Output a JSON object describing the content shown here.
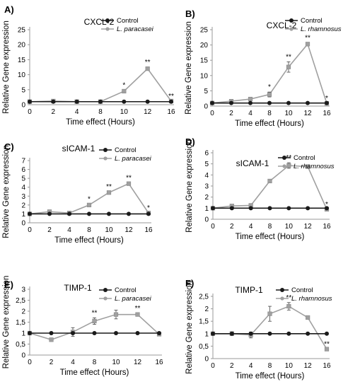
{
  "figure": {
    "width": 509,
    "height": 550
  },
  "chart_data": [
    {
      "panel": "A)",
      "type": "line",
      "title": "CXCL-2",
      "xlabel": "Time effect (Hours)",
      "ylabel": "Relative Gene expression",
      "x": [
        0,
        2,
        4,
        8,
        10,
        12,
        16
      ],
      "ylim": [
        0,
        25
      ],
      "yticks": [
        "0",
        "5",
        "10",
        "15",
        "20",
        "25"
      ],
      "series": [
        {
          "name": "Control",
          "italic": false,
          "values": [
            1,
            1,
            1,
            1,
            1,
            1,
            1
          ],
          "color": "#1a1a1a"
        },
        {
          "name": "L. paracasei",
          "italic": true,
          "values": [
            1,
            1.2,
            1,
            1,
            4.5,
            12,
            1.2
          ],
          "err": [
            0,
            0,
            0,
            0,
            0.3,
            0.5,
            0
          ],
          "sig": [
            "",
            "",
            "",
            "",
            "*",
            "**",
            "**"
          ],
          "color": "#a0a0a0"
        }
      ]
    },
    {
      "panel": "B)",
      "type": "line",
      "title": "CXCL-2",
      "xlabel": "Time effect (Hours)",
      "ylabel": "Relative Gene expression",
      "x": [
        0,
        2,
        4,
        8,
        10,
        12,
        16
      ],
      "ylim": [
        0,
        25
      ],
      "yticks": [
        "0",
        "5",
        "10",
        "15",
        "20",
        "25"
      ],
      "series": [
        {
          "name": "Control",
          "italic": false,
          "values": [
            1,
            1,
            1,
            1,
            1,
            1,
            1
          ],
          "color": "#1a1a1a"
        },
        {
          "name": "L. rhamnosus",
          "italic": true,
          "values": [
            1,
            1.6,
            2.3,
            3.8,
            12.8,
            20.3,
            0.9
          ],
          "err": [
            0,
            0,
            0,
            0.8,
            1.7,
            0.4,
            0
          ],
          "sig": [
            "",
            "",
            "",
            "*",
            "**",
            "**",
            "*"
          ],
          "color": "#a0a0a0"
        }
      ]
    },
    {
      "panel": "C)",
      "type": "line",
      "title": "sICAM-1",
      "xlabel": "Time effect (Hours)",
      "ylabel": "Relative Gene expression",
      "x": [
        0,
        2,
        4,
        8,
        10,
        12,
        16
      ],
      "ylim": [
        0,
        7
      ],
      "yticks": [
        "0",
        "1",
        "2",
        "3",
        "4",
        "5",
        "6",
        "7"
      ],
      "series": [
        {
          "name": "Control",
          "italic": false,
          "values": [
            1,
            1,
            1,
            1,
            1,
            1,
            1
          ],
          "color": "#1a1a1a"
        },
        {
          "name": "L. paracasei",
          "italic": true,
          "values": [
            1,
            1.25,
            1.1,
            2.0,
            3.4,
            4.4,
            1.1
          ],
          "err": [
            0,
            0,
            0,
            0.1,
            0.1,
            0.1,
            0
          ],
          "sig": [
            "",
            "",
            "",
            "*",
            "**",
            "**",
            "*"
          ],
          "color": "#a0a0a0"
        }
      ]
    },
    {
      "panel": "D)",
      "type": "line",
      "title": "sICAM-1",
      "xlabel": "Time effect (Hours)",
      "ylabel": "Relative Gene expression",
      "x": [
        0,
        2,
        4,
        8,
        10,
        12,
        16
      ],
      "ylim": [
        0,
        6
      ],
      "yticks": [
        "0",
        "1",
        "2",
        "3",
        "4",
        "5",
        "6"
      ],
      "series": [
        {
          "name": "Control",
          "italic": false,
          "values": [
            1,
            1,
            1,
            1,
            1,
            1,
            1
          ],
          "color": "#1a1a1a"
        },
        {
          "name": "L. rhamnosus",
          "italic": true,
          "values": [
            1,
            1.2,
            1.25,
            3.45,
            4.85,
            4.75,
            0.9
          ],
          "err": [
            0,
            0,
            0,
            0,
            0.25,
            0,
            0
          ],
          "sig": [
            "",
            "",
            "",
            "",
            "**",
            "",
            "*"
          ],
          "color": "#a0a0a0"
        }
      ]
    },
    {
      "panel": "E)",
      "type": "line",
      "title": "TIMP-1",
      "xlabel": "Time effect (Hours)",
      "ylabel": "Relative Gene expression",
      "x": [
        0,
        2,
        4,
        8,
        10,
        12,
        16
      ],
      "ylim": [
        0,
        3
      ],
      "yticks": [
        "0",
        "0,5",
        "1",
        "1,5",
        "2",
        "2,5",
        "3"
      ],
      "series": [
        {
          "name": "Control",
          "italic": false,
          "values": [
            1,
            1,
            1,
            1,
            1,
            1,
            1
          ],
          "color": "#1a1a1a"
        },
        {
          "name": "L. paracasei",
          "italic": true,
          "values": [
            1,
            0.7,
            1.05,
            1.55,
            1.85,
            1.85,
            0.95
          ],
          "err": [
            0,
            0,
            0.2,
            0.15,
            0.2,
            0.05,
            0
          ],
          "sig": [
            "",
            "",
            "",
            "**",
            "",
            "**",
            ""
          ],
          "color": "#a0a0a0"
        }
      ]
    },
    {
      "panel": "F)",
      "type": "line",
      "title": "TIMP-1",
      "xlabel": "Time effect (Hours)",
      "ylabel": "Relative Gene expression",
      "x": [
        0,
        2,
        4,
        8,
        10,
        12,
        16
      ],
      "ylim": [
        0,
        2.5
      ],
      "yticks": [
        "0",
        "0,5",
        "1",
        "1,5",
        "2",
        "2,5"
      ],
      "series": [
        {
          "name": "Control",
          "italic": false,
          "values": [
            1,
            1,
            1,
            1,
            1,
            1,
            1
          ],
          "color": "#1a1a1a"
        },
        {
          "name": "L. rhamnosus",
          "italic": true,
          "values": [
            1,
            1,
            0.95,
            1.8,
            2.1,
            1.65,
            0.38
          ],
          "err": [
            0,
            0.08,
            0.12,
            0.3,
            0.15,
            0,
            0
          ],
          "sig": [
            "",
            "",
            "",
            "",
            "**",
            "",
            "**"
          ],
          "color": "#a0a0a0"
        }
      ]
    }
  ]
}
